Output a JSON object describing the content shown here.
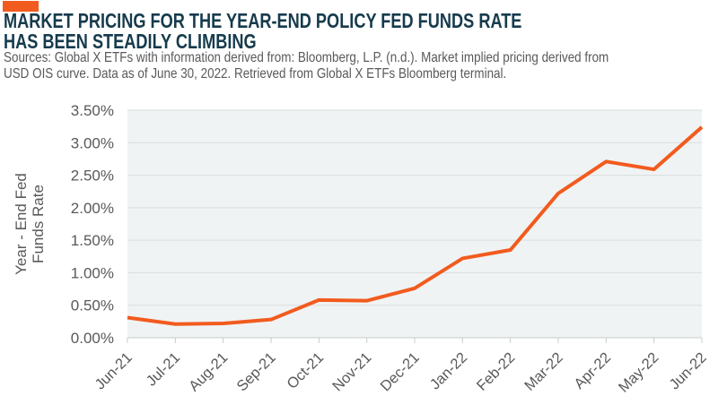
{
  "header": {
    "title_line1": "MARKET PRICING FOR THE YEAR-END POLICY FED FUNDS RATE",
    "title_line2": "HAS BEEN STEADILY CLIMBING",
    "source_line1": "Sources: Global X ETFs with information derived from: Bloomberg, L.P. (n.d.). Market implied pricing derived from",
    "source_line2": "USD OIS curve. Data as of June 30, 2022. Retrieved from Global X ETFs Bloomberg terminal."
  },
  "colors": {
    "accent_orange": "#F25B1E",
    "title_navy": "#163B4D",
    "text_gray": "#58595B",
    "plot_bg": "#F0F3F4",
    "gridline": "#D9DDDE",
    "axis_line": "#C7CBCC"
  },
  "chart_data": {
    "type": "line",
    "title": "",
    "categories": [
      "Jun-21",
      "Jul-21",
      "Aug-21",
      "Sep-21",
      "Oct-21",
      "Nov-21",
      "Dec-21",
      "Jan-22",
      "Feb-22",
      "Mar-22",
      "Apr-22",
      "May-22",
      "Jun-22"
    ],
    "values": [
      0.31,
      0.21,
      0.22,
      0.28,
      0.58,
      0.57,
      0.76,
      1.22,
      1.35,
      2.22,
      2.71,
      2.59,
      3.24
    ],
    "xlabel": "",
    "ylabel_line1": "Year - End Fed",
    "ylabel_line2": "Funds Rate",
    "ylim": [
      0,
      3.5
    ],
    "y_tick_step": 0.5,
    "y_ticks": [
      "0.00%",
      "0.50%",
      "1.00%",
      "1.50%",
      "2.00%",
      "2.50%",
      "3.00%",
      "3.50%"
    ],
    "grid": true,
    "legend_position": "none",
    "line_color": "#F25B1E"
  }
}
